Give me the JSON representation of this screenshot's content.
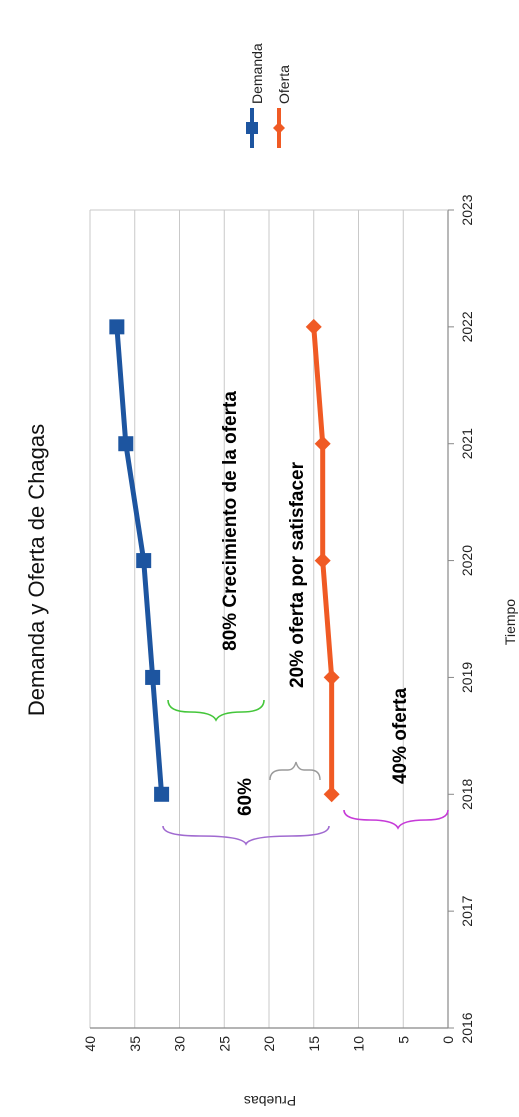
{
  "chart_data": {
    "type": "line",
    "title": "Demanda y Oferta de Chagas",
    "xlabel": "Tiempo",
    "ylabel": "Pruebas",
    "x_ticks": [
      "2016",
      "2017",
      "2018",
      "2019",
      "2020",
      "2021",
      "2022",
      "2023"
    ],
    "y_ticks": [
      "0",
      "5",
      "10",
      "15",
      "20",
      "25",
      "30",
      "35",
      "40"
    ],
    "xlim": [
      2016,
      2023
    ],
    "ylim": [
      0,
      40
    ],
    "grid": true,
    "legend_position": "top-right",
    "x": [
      2018,
      2019,
      2020,
      2021,
      2022
    ],
    "series": [
      {
        "name": "Demanda",
        "values": [
          32,
          33,
          34,
          36,
          37
        ],
        "color": "#1d55a0",
        "marker": "square"
      },
      {
        "name": "Oferta",
        "values": [
          13,
          13,
          14,
          14,
          15
        ],
        "color": "#f05a24",
        "marker": "diamond"
      }
    ],
    "annotations": [
      {
        "text": "80% Crecimiento de la oferta",
        "color": "#44c63a"
      },
      {
        "text": "20% oferta  por satisfacer",
        "color": "#9a9a9a"
      },
      {
        "text": "60%",
        "color": "#a06ad0"
      },
      {
        "text": "40% oferta",
        "color": "#c63ad8"
      }
    ]
  }
}
